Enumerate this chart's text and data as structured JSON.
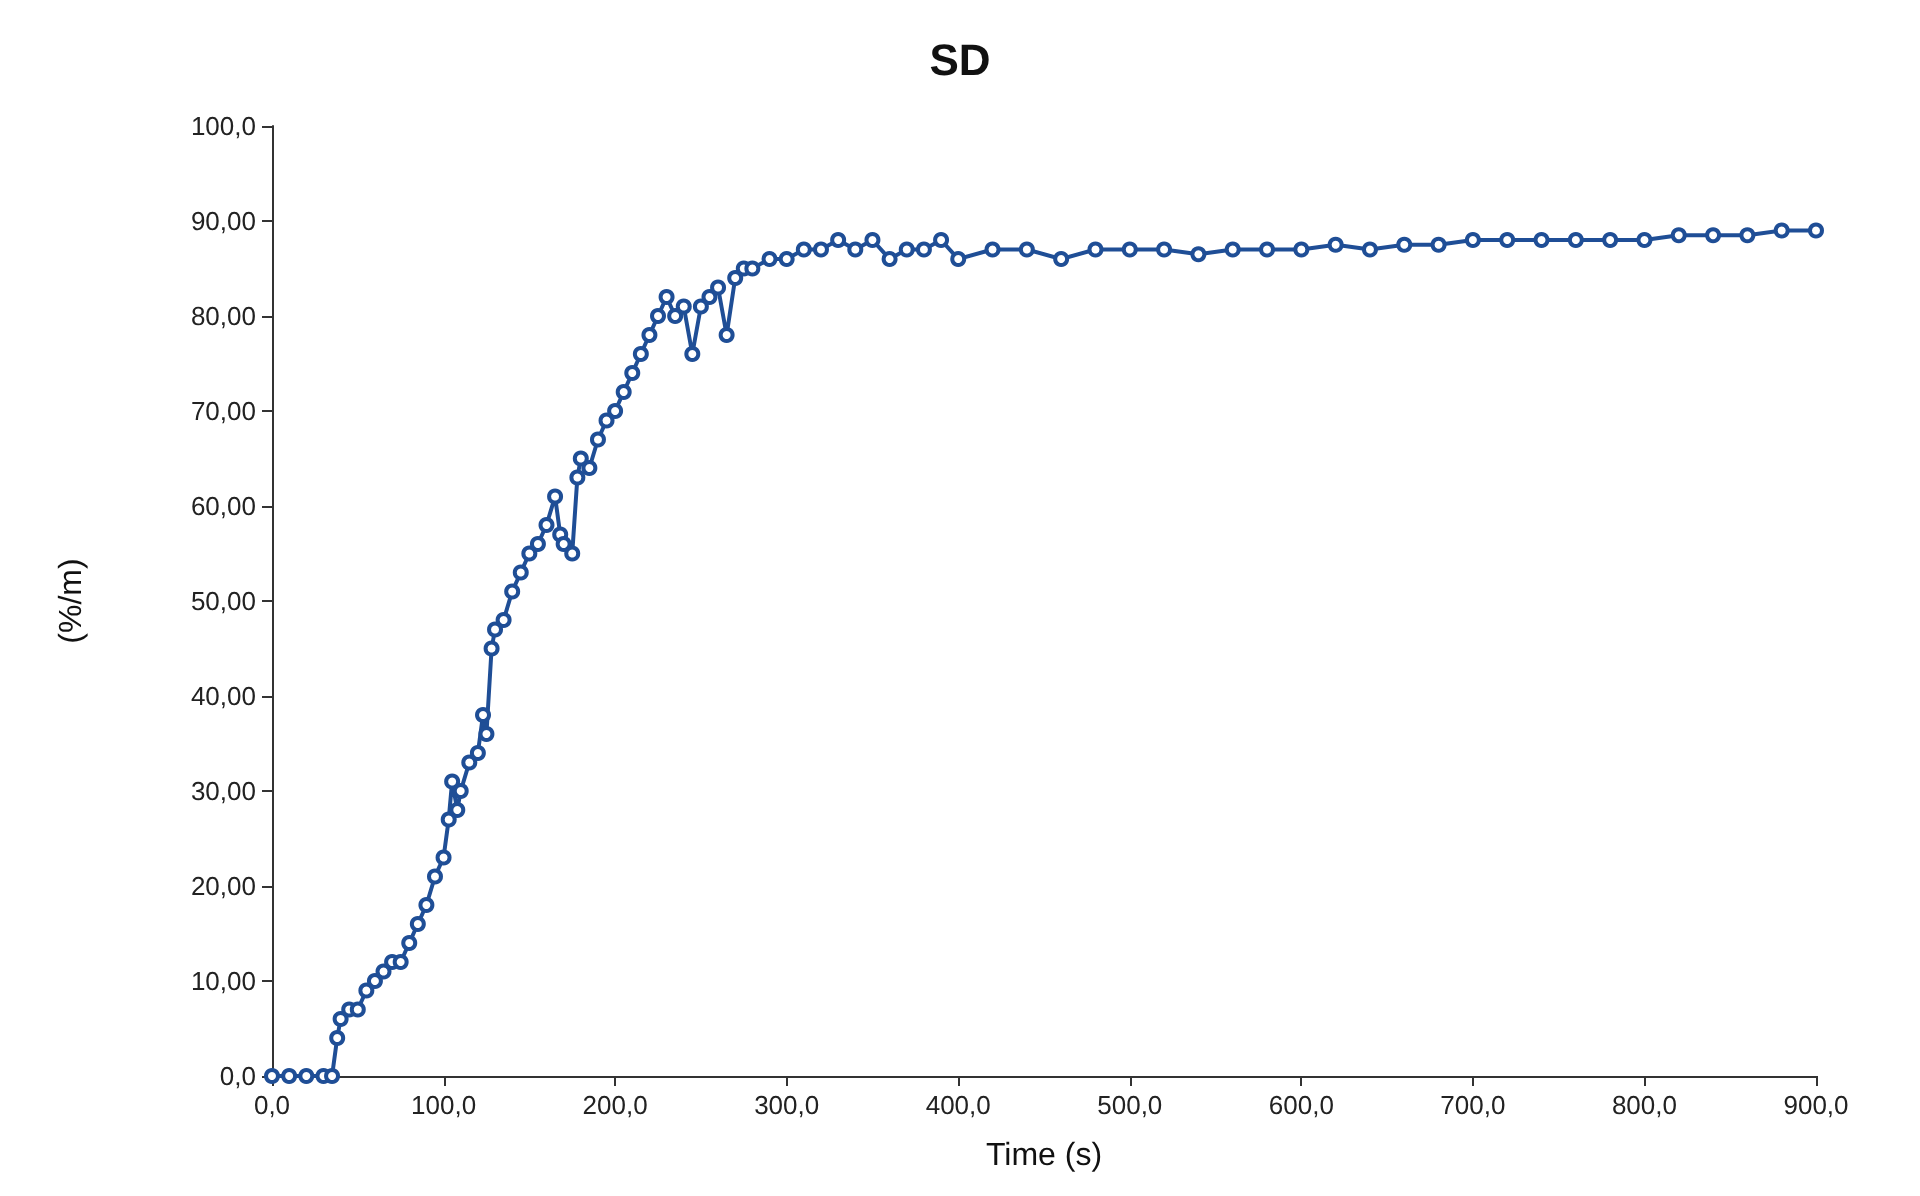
{
  "chart_data": {
    "type": "line",
    "title": "SD",
    "xlabel": "Time (s)",
    "ylabel": "(%/m)",
    "xlim": [
      0,
      900
    ],
    "xticks": [
      {
        "value": 0,
        "label": "0,0"
      },
      {
        "value": 100,
        "label": "100,0"
      },
      {
        "value": 200,
        "label": "200,0"
      },
      {
        "value": 300,
        "label": "300,0"
      },
      {
        "value": 400,
        "label": "400,0"
      },
      {
        "value": 500,
        "label": "500,0"
      },
      {
        "value": 600,
        "label": "600,0"
      },
      {
        "value": 700,
        "label": "700,0"
      },
      {
        "value": 800,
        "label": "800,0"
      },
      {
        "value": 900,
        "label": "900,0"
      }
    ],
    "ylim": [
      0,
      100
    ],
    "yticks": [
      {
        "value": 0,
        "label": "0,0"
      },
      {
        "value": 10,
        "label": "10,00"
      },
      {
        "value": 20,
        "label": "20,00"
      },
      {
        "value": 30,
        "label": "30,00"
      },
      {
        "value": 40,
        "label": "40,00"
      },
      {
        "value": 50,
        "label": "50,00"
      },
      {
        "value": 60,
        "label": "60,00"
      },
      {
        "value": 70,
        "label": "70,00"
      },
      {
        "value": 80,
        "label": "80,00"
      },
      {
        "value": 90,
        "label": "90,00"
      },
      {
        "value": 100,
        "label": "100,0"
      }
    ],
    "grid": false,
    "marker": "circle",
    "line_style": "solid",
    "series": [
      {
        "color": "#1f4e96",
        "x": [
          0,
          10,
          20,
          30,
          35,
          38,
          40,
          45,
          50,
          55,
          60,
          65,
          70,
          75,
          80,
          85,
          90,
          95,
          100,
          103,
          105,
          108,
          110,
          115,
          120,
          123,
          125,
          128,
          130,
          135,
          140,
          145,
          150,
          155,
          160,
          165,
          168,
          170,
          175,
          178,
          180,
          185,
          190,
          195,
          200,
          205,
          210,
          215,
          220,
          225,
          230,
          235,
          240,
          245,
          250,
          255,
          260,
          265,
          270,
          275,
          280,
          290,
          300,
          310,
          320,
          330,
          340,
          350,
          360,
          370,
          380,
          390,
          400,
          420,
          440,
          460,
          480,
          500,
          520,
          540,
          560,
          580,
          600,
          620,
          640,
          660,
          680,
          700,
          720,
          740,
          760,
          780,
          800,
          820,
          840,
          860,
          880,
          900
        ],
        "values": [
          0,
          0,
          0,
          0,
          0,
          4,
          6,
          7,
          7,
          9,
          10,
          11,
          12,
          12,
          14,
          16,
          18,
          21,
          23,
          27,
          31,
          28,
          30,
          33,
          34,
          38,
          36,
          45,
          47,
          48,
          51,
          53,
          55,
          56,
          58,
          61,
          57,
          56,
          55,
          63,
          65,
          64,
          67,
          69,
          70,
          72,
          74,
          76,
          78,
          80,
          82,
          80,
          81,
          76,
          81,
          82,
          83,
          78,
          84,
          85,
          85,
          86,
          86,
          87,
          87,
          88,
          87,
          88,
          86,
          87,
          87,
          88,
          86,
          87,
          87,
          86,
          87,
          87,
          87,
          86.5,
          87,
          87,
          87,
          87.5,
          87,
          87.5,
          87.5,
          88,
          88,
          88,
          88,
          88,
          88,
          88.5,
          88.5,
          88.5,
          89,
          89
        ]
      }
    ]
  }
}
